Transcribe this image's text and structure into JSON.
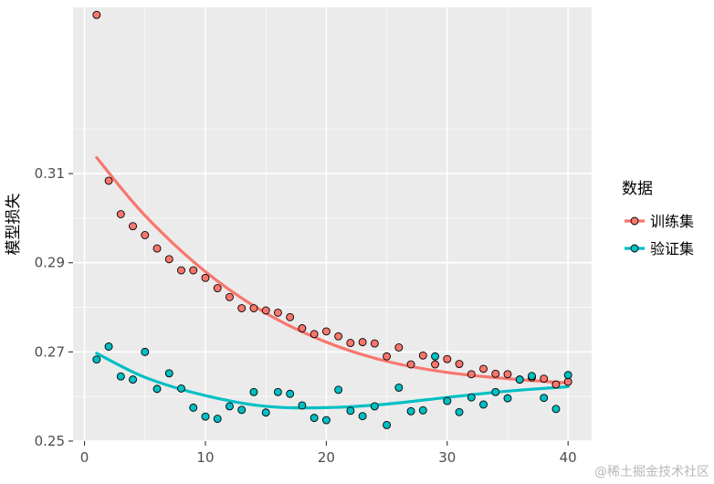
{
  "chart_data": {
    "type": "scatter",
    "title": "",
    "xlabel": "",
    "ylabel": "模型损失",
    "xlim": [
      -0.95,
      41.95
    ],
    "ylim": [
      0.25,
      0.3473
    ],
    "x_ticks": [
      0,
      10,
      20,
      30,
      40
    ],
    "y_ticks": [
      0.25,
      0.27,
      0.29,
      0.31
    ],
    "y_tick_labels": [
      "0.25",
      "0.27",
      "0.29",
      "0.31"
    ],
    "grid": true,
    "legend": {
      "title": "数据",
      "position": "right"
    },
    "watermark": "@稀土掘金技术社区",
    "series": [
      {
        "name": "训练集",
        "color": "#F8766D",
        "x": [
          1,
          2,
          3,
          4,
          5,
          6,
          7,
          8,
          9,
          10,
          11,
          12,
          13,
          14,
          15,
          16,
          17,
          18,
          19,
          20,
          21,
          22,
          23,
          24,
          25,
          26,
          27,
          28,
          29,
          30,
          31,
          32,
          33,
          34,
          35,
          36,
          37,
          38,
          39,
          40
        ],
        "y": [
          0.3456,
          0.3084,
          0.3009,
          0.2982,
          0.2962,
          0.2932,
          0.2908,
          0.2883,
          0.2883,
          0.2866,
          0.2843,
          0.2823,
          0.2798,
          0.2798,
          0.2793,
          0.2788,
          0.2778,
          0.2753,
          0.274,
          0.2746,
          0.2735,
          0.272,
          0.2722,
          0.2719,
          0.269,
          0.271,
          0.2672,
          0.2692,
          0.2672,
          0.2684,
          0.2673,
          0.265,
          0.2662,
          0.2651,
          0.265,
          0.2638,
          0.2643,
          0.264,
          0.2627,
          0.2633
        ],
        "fit": [
          [
            1,
            0.3136
          ],
          [
            5,
            0.3006
          ],
          [
            10,
            0.288
          ],
          [
            15,
            0.2787
          ],
          [
            20,
            0.2722
          ],
          [
            25,
            0.2679
          ],
          [
            30,
            0.2654
          ],
          [
            35,
            0.264
          ],
          [
            40,
            0.263
          ]
        ]
      },
      {
        "name": "验证集",
        "color": "#00BFC4",
        "x": [
          1,
          2,
          3,
          4,
          5,
          6,
          7,
          8,
          9,
          10,
          11,
          12,
          13,
          14,
          15,
          16,
          17,
          18,
          19,
          20,
          21,
          22,
          23,
          24,
          25,
          26,
          27,
          28,
          29,
          30,
          31,
          32,
          33,
          34,
          35,
          36,
          37,
          38,
          39,
          40
        ],
        "y": [
          0.2683,
          0.2712,
          0.2645,
          0.2638,
          0.27,
          0.2617,
          0.2652,
          0.2618,
          0.2575,
          0.2555,
          0.255,
          0.2578,
          0.257,
          0.261,
          0.2564,
          0.261,
          0.2606,
          0.258,
          0.2552,
          0.2547,
          0.2615,
          0.2568,
          0.2556,
          0.2578,
          0.2536,
          0.262,
          0.2567,
          0.2569,
          0.269,
          0.259,
          0.2565,
          0.2598,
          0.2582,
          0.261,
          0.2596,
          0.2638,
          0.2646,
          0.2597,
          0.2572,
          0.2648
        ],
        "fit": [
          [
            1,
            0.2697
          ],
          [
            5,
            0.2643
          ],
          [
            10,
            0.2602
          ],
          [
            15,
            0.2578
          ],
          [
            20,
            0.2575
          ],
          [
            25,
            0.2583
          ],
          [
            30,
            0.2598
          ],
          [
            35,
            0.2612
          ],
          [
            40,
            0.2622
          ]
        ]
      }
    ]
  }
}
